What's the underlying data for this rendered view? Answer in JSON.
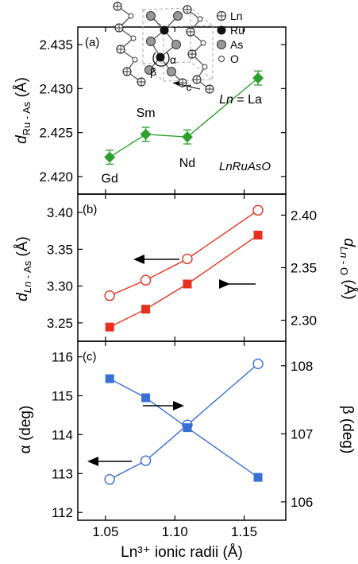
{
  "chart_data": [
    {
      "panel": "(a)",
      "type": "line",
      "x": [
        1.053,
        1.079,
        1.109,
        1.16
      ],
      "xlim": [
        1.03,
        1.18
      ],
      "xticks": [
        "1.05",
        "1.10",
        "1.15"
      ],
      "ylabel": "d_Ru - As (Å)",
      "ylim": [
        2.418,
        2.437
      ],
      "yticks": [
        "2.420",
        "2.425",
        "2.430",
        "2.435"
      ],
      "series": [
        {
          "values": [
            2.4222,
            2.4248,
            2.4245,
            2.4312
          ],
          "errors": [
            0.0008,
            0.0008,
            0.0008,
            0.0008
          ],
          "marker": "filled-diamond",
          "color": "#2ca02c"
        }
      ],
      "point_labels": [
        "Gd",
        "Sm",
        "Nd",
        "Ln = La"
      ],
      "annotation": "LnRuAsO",
      "legend": [
        "Ln",
        "Ru",
        "As",
        "O"
      ],
      "inset_labels": [
        "α",
        "β",
        "c"
      ]
    },
    {
      "panel": "(b)",
      "type": "line",
      "x": [
        1.053,
        1.079,
        1.109,
        1.16
      ],
      "xlim": [
        1.03,
        1.18
      ],
      "ylabel_left": "d_Ln - As (Å)",
      "ylim_left": [
        3.225,
        3.425
      ],
      "yticks_left": [
        "3.25",
        "3.30",
        "3.35",
        "3.40"
      ],
      "ylabel_right": "d_Ln - O (Å)",
      "ylim_right": [
        2.28,
        2.42
      ],
      "yticks_right": [
        "2.30",
        "2.35",
        "2.40"
      ],
      "series": [
        {
          "axis": "left",
          "values": [
            3.287,
            3.308,
            3.337,
            3.403
          ],
          "marker": "open-circle",
          "color": "#e8301c"
        },
        {
          "axis": "right",
          "values": [
            2.2935,
            2.3105,
            2.3345,
            2.381
          ],
          "marker": "filled-square",
          "color": "#e8301c"
        }
      ]
    },
    {
      "panel": "(c)",
      "type": "line",
      "x": [
        1.053,
        1.079,
        1.109,
        1.16
      ],
      "xlim": [
        1.03,
        1.18
      ],
      "xticks": [
        "1.05",
        "1.10",
        "1.15"
      ],
      "xlabel": "Ln³⁺ ionic radii (Å)",
      "ylabel_left": "α (deg)",
      "ylim_left": [
        111.8,
        116.4
      ],
      "yticks_left": [
        "112",
        "113",
        "114",
        "115",
        "116"
      ],
      "ylabel_right": "β (deg)",
      "ylim_right": [
        105.73,
        108.36
      ],
      "yticks_right": [
        "106",
        "107",
        "108"
      ],
      "series": [
        {
          "axis": "left",
          "values": [
            112.85,
            113.33,
            114.25,
            115.82
          ],
          "marker": "open-circle",
          "color": "#3a6fd8"
        },
        {
          "axis": "right",
          "values": [
            107.81,
            107.53,
            107.09,
            106.36
          ],
          "marker": "filled-square",
          "color": "#3a6fd8"
        }
      ]
    }
  ]
}
